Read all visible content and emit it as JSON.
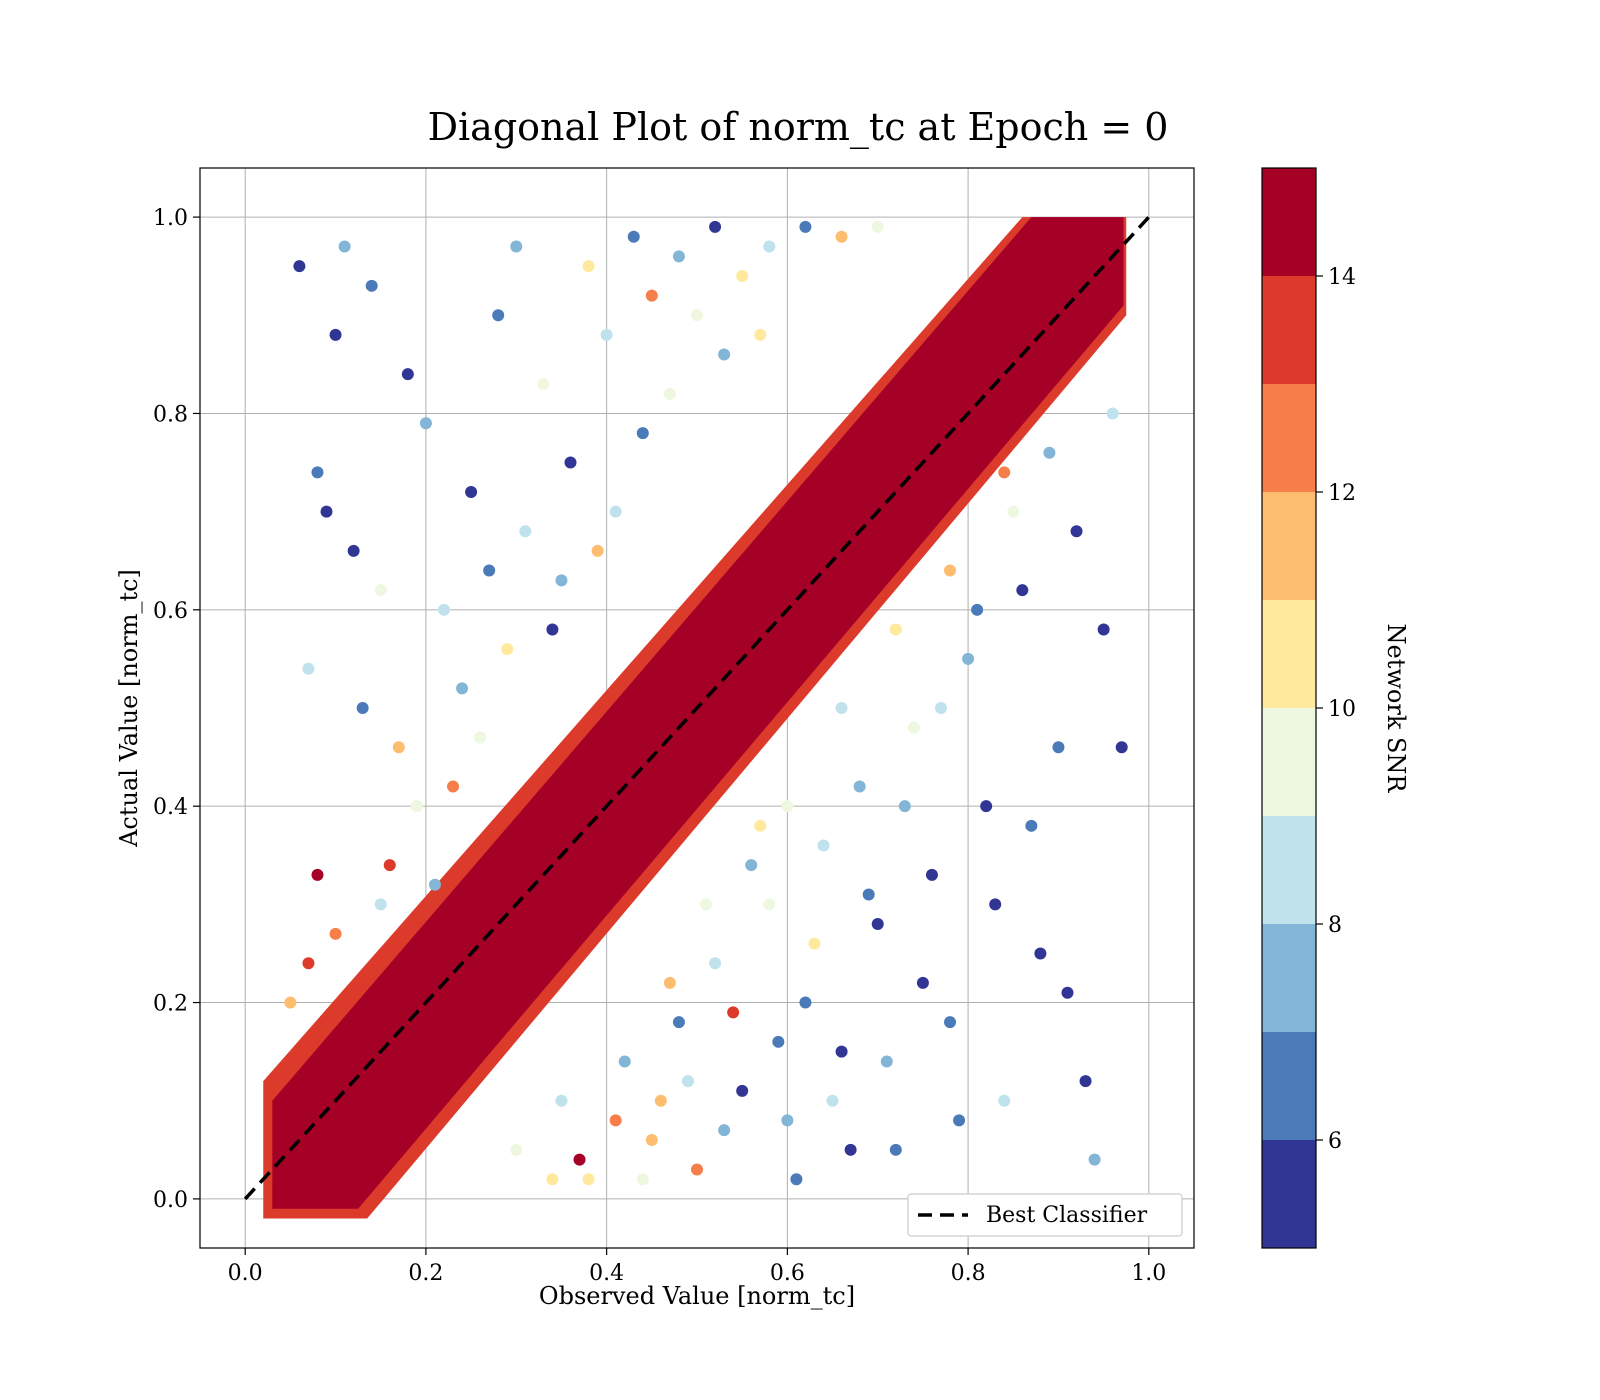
{
  "chart_data": {
    "type": "scatter",
    "title": "Diagonal Plot of norm_tc at Epoch = 0",
    "xlabel": "Observed Value [norm_tc]",
    "ylabel": "Actual Value [norm_tc]",
    "xlim": [
      -0.05,
      1.05
    ],
    "ylim": [
      -0.05,
      1.05
    ],
    "xticks": [
      0.0,
      0.2,
      0.4,
      0.6,
      0.8,
      1.0
    ],
    "yticks": [
      0.0,
      0.2,
      0.4,
      0.6,
      0.8,
      1.0
    ],
    "xtick_labels": [
      "0.0",
      "0.2",
      "0.4",
      "0.6",
      "0.8",
      "1.0"
    ],
    "ytick_labels": [
      "0.0",
      "0.2",
      "0.4",
      "0.6",
      "0.8",
      "1.0"
    ],
    "grid": true,
    "legend": {
      "position": "lower-right",
      "entries": [
        "Best Classifier"
      ]
    },
    "reference_line": {
      "name": "Best Classifier",
      "x": [
        0,
        1
      ],
      "y": [
        0,
        1
      ],
      "style": "dashed",
      "color": "#000000"
    },
    "colorbar": {
      "label": "Network SNR",
      "range": [
        5,
        15
      ],
      "ticks": [
        6,
        8,
        10,
        12,
        14
      ],
      "tick_labels": [
        "6",
        "8",
        "10",
        "12",
        "14"
      ],
      "levels": [
        {
          "from": 5,
          "to": 6,
          "color": "#313695"
        },
        {
          "from": 6,
          "to": 7,
          "color": "#4a7ab7"
        },
        {
          "from": 7,
          "to": 8,
          "color": "#82b5d6"
        },
        {
          "from": 8,
          "to": 9,
          "color": "#bfe2ed"
        },
        {
          "from": 9,
          "to": 10,
          "color": "#eef7e0"
        },
        {
          "from": 10,
          "to": 11,
          "color": "#fee99d"
        },
        {
          "from": 11,
          "to": 12,
          "color": "#fdbd6f"
        },
        {
          "from": 12,
          "to": 13,
          "color": "#f67e4b"
        },
        {
          "from": 13,
          "to": 14,
          "color": "#dc3b2c"
        },
        {
          "from": 14,
          "to": 15,
          "color": "#a50026"
        }
      ]
    },
    "points": [
      {
        "x": 0.06,
        "y": 0.95,
        "snr": 5.3
      },
      {
        "x": 0.1,
        "y": 0.88,
        "snr": 5.2
      },
      {
        "x": 0.08,
        "y": 0.74,
        "snr": 6.1
      },
      {
        "x": 0.09,
        "y": 0.7,
        "snr": 5.5
      },
      {
        "x": 0.11,
        "y": 0.97,
        "snr": 7.5
      },
      {
        "x": 0.14,
        "y": 0.93,
        "snr": 6.3
      },
      {
        "x": 0.07,
        "y": 0.54,
        "snr": 8.3
      },
      {
        "x": 0.12,
        "y": 0.66,
        "snr": 5.4
      },
      {
        "x": 0.15,
        "y": 0.62,
        "snr": 9.6
      },
      {
        "x": 0.18,
        "y": 0.84,
        "snr": 5.7
      },
      {
        "x": 0.2,
        "y": 0.79,
        "snr": 7.2
      },
      {
        "x": 0.13,
        "y": 0.5,
        "snr": 6.8
      },
      {
        "x": 0.17,
        "y": 0.46,
        "snr": 11.2
      },
      {
        "x": 0.22,
        "y": 0.6,
        "snr": 8.8
      },
      {
        "x": 0.25,
        "y": 0.72,
        "snr": 5.9
      },
      {
        "x": 0.28,
        "y": 0.9,
        "snr": 6.6
      },
      {
        "x": 0.3,
        "y": 0.97,
        "snr": 7.8
      },
      {
        "x": 0.33,
        "y": 0.83,
        "snr": 9.3
      },
      {
        "x": 0.36,
        "y": 0.75,
        "snr": 5.1
      },
      {
        "x": 0.38,
        "y": 0.95,
        "snr": 10.4
      },
      {
        "x": 0.4,
        "y": 0.88,
        "snr": 8.2
      },
      {
        "x": 0.43,
        "y": 0.98,
        "snr": 6.4
      },
      {
        "x": 0.45,
        "y": 0.92,
        "snr": 12.3
      },
      {
        "x": 0.48,
        "y": 0.96,
        "snr": 7.1
      },
      {
        "x": 0.5,
        "y": 0.9,
        "snr": 9.1
      },
      {
        "x": 0.52,
        "y": 0.99,
        "snr": 5.6
      },
      {
        "x": 0.55,
        "y": 0.94,
        "snr": 10.8
      },
      {
        "x": 0.58,
        "y": 0.97,
        "snr": 8.6
      },
      {
        "x": 0.62,
        "y": 0.99,
        "snr": 6.9
      },
      {
        "x": 0.66,
        "y": 0.98,
        "snr": 11.6
      },
      {
        "x": 0.7,
        "y": 0.99,
        "snr": 9.8
      },
      {
        "x": 0.24,
        "y": 0.52,
        "snr": 7.4
      },
      {
        "x": 0.27,
        "y": 0.64,
        "snr": 6.2
      },
      {
        "x": 0.31,
        "y": 0.68,
        "snr": 8.9
      },
      {
        "x": 0.34,
        "y": 0.58,
        "snr": 5.3
      },
      {
        "x": 0.19,
        "y": 0.4,
        "snr": 9.9
      },
      {
        "x": 0.23,
        "y": 0.42,
        "snr": 12.8
      },
      {
        "x": 0.29,
        "y": 0.56,
        "snr": 10.2
      },
      {
        "x": 0.35,
        "y": 0.63,
        "snr": 7.7
      },
      {
        "x": 0.41,
        "y": 0.7,
        "snr": 8.1
      },
      {
        "x": 0.44,
        "y": 0.78,
        "snr": 6.5
      },
      {
        "x": 0.47,
        "y": 0.82,
        "snr": 9.4
      },
      {
        "x": 0.53,
        "y": 0.86,
        "snr": 7.3
      },
      {
        "x": 0.57,
        "y": 0.88,
        "snr": 10.6
      },
      {
        "x": 0.39,
        "y": 0.66,
        "snr": 11.4
      },
      {
        "x": 0.16,
        "y": 0.34,
        "snr": 13.5
      },
      {
        "x": 0.1,
        "y": 0.27,
        "snr": 12.2
      },
      {
        "x": 0.08,
        "y": 0.33,
        "snr": 14.6
      },
      {
        "x": 0.07,
        "y": 0.24,
        "snr": 13.2
      },
      {
        "x": 0.05,
        "y": 0.2,
        "snr": 11.8
      },
      {
        "x": 0.21,
        "y": 0.32,
        "snr": 7.6
      },
      {
        "x": 0.15,
        "y": 0.3,
        "snr": 8.4
      },
      {
        "x": 0.26,
        "y": 0.47,
        "snr": 9.2
      },
      {
        "x": 0.3,
        "y": 0.05,
        "snr": 9.7
      },
      {
        "x": 0.35,
        "y": 0.1,
        "snr": 8.3
      },
      {
        "x": 0.38,
        "y": 0.02,
        "snr": 10.5
      },
      {
        "x": 0.42,
        "y": 0.14,
        "snr": 7.2
      },
      {
        "x": 0.45,
        "y": 0.06,
        "snr": 11.1
      },
      {
        "x": 0.48,
        "y": 0.18,
        "snr": 6.4
      },
      {
        "x": 0.5,
        "y": 0.03,
        "snr": 12.4
      },
      {
        "x": 0.52,
        "y": 0.24,
        "snr": 8.8
      },
      {
        "x": 0.55,
        "y": 0.11,
        "snr": 5.5
      },
      {
        "x": 0.58,
        "y": 0.3,
        "snr": 9.3
      },
      {
        "x": 0.6,
        "y": 0.08,
        "snr": 7.9
      },
      {
        "x": 0.62,
        "y": 0.2,
        "snr": 6.1
      },
      {
        "x": 0.64,
        "y": 0.36,
        "snr": 8.5
      },
      {
        "x": 0.66,
        "y": 0.15,
        "snr": 5.2
      },
      {
        "x": 0.68,
        "y": 0.42,
        "snr": 7.5
      },
      {
        "x": 0.7,
        "y": 0.28,
        "snr": 5.8
      },
      {
        "x": 0.72,
        "y": 0.05,
        "snr": 6.7
      },
      {
        "x": 0.74,
        "y": 0.48,
        "snr": 9.1
      },
      {
        "x": 0.76,
        "y": 0.33,
        "snr": 5.4
      },
      {
        "x": 0.78,
        "y": 0.18,
        "snr": 6.3
      },
      {
        "x": 0.8,
        "y": 0.55,
        "snr": 7.1
      },
      {
        "x": 0.82,
        "y": 0.4,
        "snr": 5.1
      },
      {
        "x": 0.84,
        "y": 0.1,
        "snr": 8.2
      },
      {
        "x": 0.86,
        "y": 0.62,
        "snr": 5.9
      },
      {
        "x": 0.88,
        "y": 0.25,
        "snr": 5.3
      },
      {
        "x": 0.9,
        "y": 0.46,
        "snr": 6.6
      },
      {
        "x": 0.92,
        "y": 0.68,
        "snr": 5.6
      },
      {
        "x": 0.93,
        "y": 0.12,
        "snr": 5.2
      },
      {
        "x": 0.94,
        "y": 0.04,
        "snr": 7.7
      },
      {
        "x": 0.95,
        "y": 0.58,
        "snr": 5.4
      },
      {
        "x": 0.96,
        "y": 0.8,
        "snr": 8.6
      },
      {
        "x": 0.97,
        "y": 0.46,
        "snr": 5.3
      },
      {
        "x": 0.91,
        "y": 0.21,
        "snr": 5.7
      },
      {
        "x": 0.87,
        "y": 0.38,
        "snr": 6.2
      },
      {
        "x": 0.83,
        "y": 0.3,
        "snr": 5.5
      },
      {
        "x": 0.79,
        "y": 0.08,
        "snr": 6.9
      },
      {
        "x": 0.75,
        "y": 0.22,
        "snr": 5.6
      },
      {
        "x": 0.71,
        "y": 0.14,
        "snr": 7.3
      },
      {
        "x": 0.67,
        "y": 0.05,
        "snr": 5.9
      },
      {
        "x": 0.63,
        "y": 0.26,
        "snr": 10.3
      },
      {
        "x": 0.59,
        "y": 0.16,
        "snr": 6.5
      },
      {
        "x": 0.56,
        "y": 0.34,
        "snr": 7.8
      },
      {
        "x": 0.54,
        "y": 0.19,
        "snr": 13.1
      },
      {
        "x": 0.46,
        "y": 0.1,
        "snr": 11.7
      },
      {
        "x": 0.41,
        "y": 0.08,
        "snr": 12.9
      },
      {
        "x": 0.37,
        "y": 0.04,
        "snr": 14.5
      },
      {
        "x": 0.34,
        "y": 0.02,
        "snr": 10.9
      },
      {
        "x": 0.44,
        "y": 0.02,
        "snr": 9.5
      },
      {
        "x": 0.49,
        "y": 0.12,
        "snr": 8.7
      },
      {
        "x": 0.53,
        "y": 0.07,
        "snr": 7.4
      },
      {
        "x": 0.61,
        "y": 0.02,
        "snr": 6.8
      },
      {
        "x": 0.65,
        "y": 0.1,
        "snr": 8.1
      },
      {
        "x": 0.69,
        "y": 0.31,
        "snr": 6.4
      },
      {
        "x": 0.73,
        "y": 0.4,
        "snr": 7.9
      },
      {
        "x": 0.77,
        "y": 0.5,
        "snr": 8.9
      },
      {
        "x": 0.81,
        "y": 0.6,
        "snr": 6.0
      },
      {
        "x": 0.85,
        "y": 0.7,
        "snr": 9.6
      },
      {
        "x": 0.89,
        "y": 0.76,
        "snr": 7.0
      },
      {
        "x": 0.6,
        "y": 0.4,
        "snr": 9.8
      },
      {
        "x": 0.66,
        "y": 0.5,
        "snr": 8.0
      },
      {
        "x": 0.72,
        "y": 0.58,
        "snr": 10.7
      },
      {
        "x": 0.78,
        "y": 0.64,
        "snr": 11.3
      },
      {
        "x": 0.84,
        "y": 0.74,
        "snr": 12.6
      },
      {
        "x": 0.57,
        "y": 0.38,
        "snr": 10.1
      },
      {
        "x": 0.51,
        "y": 0.3,
        "snr": 9.0
      },
      {
        "x": 0.47,
        "y": 0.22,
        "snr": 11.5
      }
    ]
  }
}
